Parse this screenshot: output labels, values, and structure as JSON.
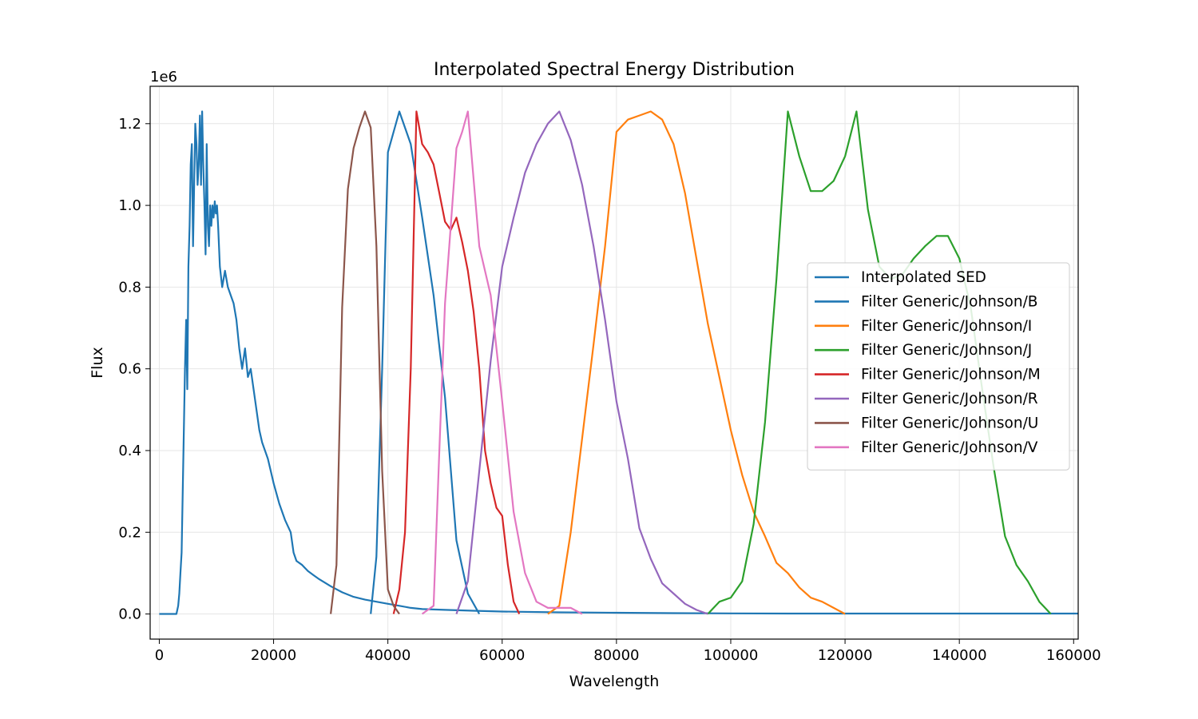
{
  "chart_data": {
    "type": "line",
    "title": "Interpolated Spectral Energy Distribution",
    "xlabel": "Wavelength",
    "ylabel": "Flux",
    "y_offset_label": "1e6",
    "xlim": [
      -1600,
      160800
    ],
    "ylim": [
      -0.0615,
      1.2915
    ],
    "xticks": [
      0,
      20000,
      40000,
      60000,
      80000,
      100000,
      120000,
      140000,
      160000
    ],
    "xtick_labels": [
      "0",
      "20000",
      "40000",
      "60000",
      "80000",
      "100000",
      "120000",
      "140000",
      "160000"
    ],
    "yticks": [
      0.0,
      0.2,
      0.4,
      0.6,
      0.8,
      1.0,
      1.2
    ],
    "ytick_labels": [
      "0.0",
      "0.2",
      "0.4",
      "0.6",
      "0.8",
      "1.0",
      "1.2"
    ],
    "grid": true,
    "legend_position": "center-right",
    "series": [
      {
        "name": "Interpolated SED",
        "color": "#1f77b4",
        "x": [
          0,
          1000,
          2000,
          3000,
          3300,
          3500,
          3700,
          3900,
          4100,
          4300,
          4500,
          4700,
          4900,
          5100,
          5300,
          5500,
          5700,
          5900,
          6100,
          6300,
          6500,
          6700,
          6900,
          7100,
          7300,
          7500,
          7700,
          7900,
          8100,
          8300,
          8500,
          8700,
          8900,
          9100,
          9300,
          9500,
          9700,
          9900,
          10100,
          10300,
          10600,
          11000,
          11500,
          12000,
          12500,
          13000,
          13500,
          14000,
          14500,
          15000,
          15500,
          16000,
          16500,
          17000,
          17500,
          18000,
          18500,
          19000,
          19500,
          20000,
          21000,
          22000,
          23000,
          23500,
          24000,
          25000,
          26000,
          27000,
          28000,
          30000,
          32000,
          34000,
          36000,
          38000,
          40000,
          42000,
          44000,
          46000,
          50000,
          55000,
          60000,
          70000,
          80000,
          90000,
          100000,
          110000,
          120000,
          130000,
          140000,
          150000,
          160800
        ],
        "y": [
          0.0,
          0.0,
          0.0,
          0.0,
          0.02,
          0.05,
          0.1,
          0.15,
          0.3,
          0.45,
          0.6,
          0.72,
          0.55,
          0.85,
          0.95,
          1.1,
          1.15,
          0.9,
          1.05,
          1.2,
          1.15,
          1.05,
          1.1,
          1.22,
          1.05,
          1.23,
          1.1,
          1.0,
          0.88,
          1.15,
          0.95,
          0.9,
          1.0,
          0.95,
          1.0,
          0.97,
          1.01,
          0.98,
          1.0,
          0.95,
          0.85,
          0.8,
          0.84,
          0.8,
          0.78,
          0.76,
          0.72,
          0.65,
          0.6,
          0.65,
          0.58,
          0.6,
          0.55,
          0.5,
          0.45,
          0.42,
          0.4,
          0.38,
          0.35,
          0.32,
          0.27,
          0.23,
          0.2,
          0.15,
          0.13,
          0.12,
          0.105,
          0.095,
          0.085,
          0.068,
          0.053,
          0.042,
          0.035,
          0.03,
          0.025,
          0.02,
          0.015,
          0.012,
          0.01,
          0.008,
          0.006,
          0.004,
          0.003,
          0.002,
          0.0015,
          0.001,
          0.001,
          0.001,
          0.001,
          0.001,
          0.001
        ]
      },
      {
        "name": "Filter Generic/Johnson/B",
        "color": "#1f77b4",
        "x": [
          37000,
          38000,
          39000,
          40000,
          42000,
          44000,
          46000,
          48000,
          50000,
          52000,
          54000,
          56000
        ],
        "y": [
          0.0,
          0.14,
          0.6,
          1.13,
          1.23,
          1.15,
          0.97,
          0.78,
          0.53,
          0.18,
          0.05,
          0.0
        ]
      },
      {
        "name": "Filter Generic/Johnson/I",
        "color": "#ff7f0e",
        "x": [
          68000,
          70000,
          72000,
          74000,
          76000,
          78000,
          80000,
          82000,
          84000,
          86000,
          88000,
          90000,
          92000,
          94000,
          96000,
          98000,
          100000,
          102000,
          104000,
          106000,
          108000,
          110000,
          112000,
          114000,
          116000,
          118000,
          120000
        ],
        "y": [
          0.0,
          0.02,
          0.2,
          0.43,
          0.66,
          0.9,
          1.18,
          1.21,
          1.22,
          1.23,
          1.21,
          1.15,
          1.03,
          0.87,
          0.71,
          0.58,
          0.45,
          0.34,
          0.25,
          0.19,
          0.125,
          0.1,
          0.065,
          0.04,
          0.03,
          0.015,
          0.0
        ]
      },
      {
        "name": "Filter Generic/Johnson/J",
        "color": "#2ca02c",
        "x": [
          96000,
          98000,
          100000,
          102000,
          104000,
          106000,
          108000,
          110000,
          112000,
          114000,
          116000,
          118000,
          120000,
          122000,
          124000,
          126000,
          128000,
          130000,
          132000,
          134000,
          136000,
          138000,
          140000,
          142000,
          144000,
          146000,
          148000,
          150000,
          152000,
          154000,
          156000
        ],
        "y": [
          0.0,
          0.03,
          0.04,
          0.08,
          0.22,
          0.47,
          0.82,
          1.23,
          1.12,
          1.035,
          1.035,
          1.06,
          1.12,
          1.23,
          0.99,
          0.85,
          0.82,
          0.83,
          0.87,
          0.9,
          0.925,
          0.925,
          0.87,
          0.75,
          0.55,
          0.36,
          0.19,
          0.12,
          0.08,
          0.03,
          0.0
        ]
      },
      {
        "name": "Filter Generic/Johnson/M",
        "color": "#d62728",
        "x": [
          41000,
          42000,
          43000,
          44000,
          45000,
          46000,
          47000,
          48000,
          49000,
          50000,
          51000,
          52000,
          53000,
          54000,
          55000,
          56000,
          57000,
          58000,
          59000,
          60000,
          61000,
          62000,
          63000
        ],
        "y": [
          0.0,
          0.06,
          0.2,
          0.6,
          1.23,
          1.15,
          1.13,
          1.1,
          1.03,
          0.96,
          0.94,
          0.97,
          0.91,
          0.84,
          0.74,
          0.6,
          0.4,
          0.32,
          0.26,
          0.24,
          0.12,
          0.03,
          0.0
        ]
      },
      {
        "name": "Filter Generic/Johnson/R",
        "color": "#9467bd",
        "x": [
          52000,
          54000,
          56000,
          58000,
          60000,
          62000,
          64000,
          66000,
          68000,
          70000,
          72000,
          74000,
          76000,
          78000,
          80000,
          82000,
          84000,
          86000,
          88000,
          90000,
          92000,
          94000,
          96000
        ],
        "y": [
          0.0,
          0.08,
          0.35,
          0.62,
          0.85,
          0.97,
          1.08,
          1.15,
          1.2,
          1.23,
          1.16,
          1.05,
          0.9,
          0.72,
          0.52,
          0.38,
          0.21,
          0.135,
          0.075,
          0.05,
          0.025,
          0.01,
          0.0
        ]
      },
      {
        "name": "Filter Generic/Johnson/U",
        "color": "#8c564b",
        "x": [
          30000,
          31000,
          32000,
          33000,
          34000,
          35000,
          36000,
          37000,
          38000,
          39000,
          40000,
          41000,
          42000
        ],
        "y": [
          0.0,
          0.12,
          0.75,
          1.04,
          1.14,
          1.19,
          1.23,
          1.19,
          0.9,
          0.35,
          0.06,
          0.02,
          0.0
        ]
      },
      {
        "name": "Filter Generic/Johnson/V",
        "color": "#e377c2",
        "x": [
          46000,
          47000,
          48000,
          49000,
          50000,
          51000,
          52000,
          53000,
          54000,
          56000,
          58000,
          60000,
          62000,
          64000,
          66000,
          68000,
          70000,
          72000,
          74000
        ],
        "y": [
          0.0,
          0.01,
          0.02,
          0.4,
          0.76,
          0.95,
          1.14,
          1.18,
          1.23,
          0.9,
          0.78,
          0.52,
          0.25,
          0.1,
          0.03,
          0.015,
          0.015,
          0.015,
          0.0
        ]
      }
    ]
  }
}
